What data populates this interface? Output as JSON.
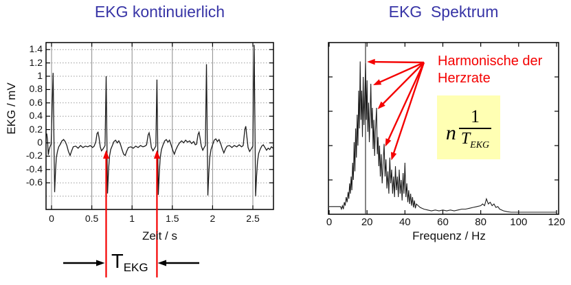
{
  "page": {
    "background": "#ffffff"
  },
  "colors": {
    "title_blue": "#3734a6",
    "annotation_red": "#f40000",
    "formula_bg": "#ffffb3",
    "trace": "#1a1a1a",
    "grid_h": "#999999",
    "grid_v": "#8a8a8a",
    "axis": "#000000"
  },
  "chart_data": [
    {
      "id": "ekg-time",
      "type": "line",
      "title": "EKG kontinuierlich",
      "xlabel": "Zeit / s",
      "ylabel": "EKG / mV",
      "xlim": [
        -0.07,
        2.76
      ],
      "ylim": [
        -1.0,
        1.5
      ],
      "grid": true,
      "x_ticks": [
        "0",
        "0.5",
        "1",
        "1.5",
        "2",
        "2.5"
      ],
      "y_ticks": [
        "1.4",
        "1.2",
        "1",
        "0.8",
        "0.6",
        "0.4",
        "0.2",
        "0",
        "-0.2",
        "-0.4",
        "-0.6"
      ],
      "x_gridlines": [
        0,
        0.5,
        1,
        1.5,
        2,
        2.5
      ],
      "y_gridlines": [
        1.4,
        1.2,
        1,
        0.8,
        0.6,
        0.4,
        0.2,
        0,
        -0.2,
        -0.4,
        -0.6,
        -0.8
      ],
      "annotations": {
        "period_lines_t": [
          0.678,
          1.309
        ],
        "line_color": "#f40000",
        "label_main": "T",
        "label_sub": "EKG"
      },
      "points": [
        [
          -0.06,
          0.14
        ],
        [
          -0.05,
          0.05
        ],
        [
          -0.04,
          -0.18
        ],
        [
          -0.03,
          -0.1
        ],
        [
          -0.02,
          -0.06
        ],
        [
          -0.005,
          -0.02
        ],
        [
          0.02,
          1.05
        ],
        [
          0.038,
          -0.74
        ],
        [
          0.05,
          -0.4
        ],
        [
          0.06,
          -0.22
        ],
        [
          0.075,
          -0.12
        ],
        [
          0.09,
          -0.06
        ],
        [
          0.11,
          -0.02
        ],
        [
          0.13,
          0.03
        ],
        [
          0.15,
          0.05
        ],
        [
          0.17,
          0.02
        ],
        [
          0.19,
          -0.04
        ],
        [
          0.21,
          -0.13
        ],
        [
          0.23,
          -0.19
        ],
        [
          0.25,
          -0.12
        ],
        [
          0.27,
          -0.06
        ],
        [
          0.3,
          -0.05
        ],
        [
          0.33,
          -0.08
        ],
        [
          0.36,
          -0.04
        ],
        [
          0.39,
          -0.07
        ],
        [
          0.42,
          -0.05
        ],
        [
          0.45,
          -0.06
        ],
        [
          0.48,
          -0.04
        ],
        [
          0.51,
          -0.07
        ],
        [
          0.53,
          -0.05
        ],
        [
          0.55,
          0.02
        ],
        [
          0.565,
          0.14
        ],
        [
          0.578,
          0.16
        ],
        [
          0.59,
          0.08
        ],
        [
          0.605,
          -0.06
        ],
        [
          0.62,
          -0.12
        ],
        [
          0.64,
          -0.09
        ],
        [
          0.655,
          -0.06
        ],
        [
          0.665,
          -0.04
        ],
        [
          0.678,
          1.0
        ],
        [
          0.695,
          -0.76
        ],
        [
          0.707,
          -0.42
        ],
        [
          0.72,
          -0.2
        ],
        [
          0.735,
          -0.1
        ],
        [
          0.755,
          -0.04
        ],
        [
          0.775,
          0.02
        ],
        [
          0.795,
          0.04
        ],
        [
          0.815,
          0.0
        ],
        [
          0.835,
          0.03
        ],
        [
          0.855,
          -0.02
        ],
        [
          0.875,
          -0.1
        ],
        [
          0.895,
          -0.17
        ],
        [
          0.915,
          -0.19
        ],
        [
          0.935,
          -0.12
        ],
        [
          0.955,
          -0.07
        ],
        [
          0.985,
          -0.06
        ],
        [
          1.015,
          -0.08
        ],
        [
          1.045,
          -0.05
        ],
        [
          1.075,
          -0.07
        ],
        [
          1.105,
          -0.04
        ],
        [
          1.135,
          -0.06
        ],
        [
          1.16,
          -0.05
        ],
        [
          1.18,
          -0.03
        ],
        [
          1.2,
          0.12
        ],
        [
          1.212,
          0.15
        ],
        [
          1.225,
          0.06
        ],
        [
          1.24,
          -0.07
        ],
        [
          1.26,
          -0.12
        ],
        [
          1.28,
          -0.08
        ],
        [
          1.295,
          -0.05
        ],
        [
          1.309,
          0.95
        ],
        [
          1.326,
          -0.78
        ],
        [
          1.338,
          -0.45
        ],
        [
          1.35,
          -0.22
        ],
        [
          1.365,
          -0.1
        ],
        [
          1.385,
          -0.03
        ],
        [
          1.405,
          0.03
        ],
        [
          1.425,
          0.05
        ],
        [
          1.445,
          0.01
        ],
        [
          1.465,
          0.04
        ],
        [
          1.485,
          -0.03
        ],
        [
          1.505,
          -0.11
        ],
        [
          1.525,
          -0.17
        ],
        [
          1.545,
          -0.1
        ],
        [
          1.565,
          -0.05
        ],
        [
          1.59,
          0.0
        ],
        [
          1.615,
          0.03
        ],
        [
          1.64,
          0.0
        ],
        [
          1.665,
          0.04
        ],
        [
          1.69,
          0.01
        ],
        [
          1.715,
          0.03
        ],
        [
          1.74,
          -0.01
        ],
        [
          1.765,
          0.02
        ],
        [
          1.785,
          -0.03
        ],
        [
          1.8,
          -0.02
        ],
        [
          1.82,
          0.13
        ],
        [
          1.832,
          0.16
        ],
        [
          1.845,
          0.07
        ],
        [
          1.86,
          -0.05
        ],
        [
          1.878,
          -0.11
        ],
        [
          1.895,
          -0.07
        ],
        [
          1.91,
          -0.04
        ],
        [
          1.924,
          1.18
        ],
        [
          1.941,
          -0.79
        ],
        [
          1.953,
          -0.45
        ],
        [
          1.965,
          -0.22
        ],
        [
          1.98,
          -0.1
        ],
        [
          2.0,
          -0.03
        ],
        [
          2.02,
          0.04
        ],
        [
          2.04,
          0.06
        ],
        [
          2.06,
          0.02
        ],
        [
          2.08,
          0.05
        ],
        [
          2.1,
          -0.01
        ],
        [
          2.12,
          -0.09
        ],
        [
          2.14,
          -0.15
        ],
        [
          2.16,
          -0.09
        ],
        [
          2.18,
          -0.05
        ],
        [
          2.21,
          -0.04
        ],
        [
          2.24,
          -0.07
        ],
        [
          2.27,
          -0.04
        ],
        [
          2.3,
          -0.06
        ],
        [
          2.33,
          -0.03
        ],
        [
          2.36,
          -0.06
        ],
        [
          2.38,
          -0.04
        ],
        [
          2.4,
          0.2
        ],
        [
          2.412,
          0.25
        ],
        [
          2.425,
          0.1
        ],
        [
          2.44,
          -0.07
        ],
        [
          2.46,
          -0.13
        ],
        [
          2.48,
          -0.09
        ],
        [
          2.5,
          -0.05
        ],
        [
          2.516,
          1.47
        ],
        [
          2.534,
          -0.8
        ],
        [
          2.546,
          -0.5
        ],
        [
          2.558,
          -0.28
        ],
        [
          2.572,
          -0.16
        ],
        [
          2.59,
          -0.1
        ],
        [
          2.61,
          -0.05
        ],
        [
          2.63,
          -0.03
        ],
        [
          2.65,
          -0.07
        ],
        [
          2.67,
          -0.11
        ],
        [
          2.69,
          -0.08
        ],
        [
          2.71,
          -0.1
        ],
        [
          2.73,
          -0.06
        ],
        [
          2.75,
          -0.08
        ]
      ]
    },
    {
      "id": "ekg-spectrum",
      "type": "line",
      "title": "EKG  Spektrum",
      "xlabel": "Frequenz / Hz",
      "xlim": [
        0,
        121
      ],
      "ylim": [
        0,
        1
      ],
      "grid": false,
      "x_ticks": [
        "0",
        "20",
        "40",
        "60",
        "80",
        "100",
        "120"
      ],
      "marker_line_hz": 19.2,
      "annotations": {
        "color": "#f40000",
        "text_line1": "Harmonische der",
        "text_line2": "Herzrate",
        "formula": {
          "factor": "n",
          "numerator": "1",
          "den_main": "T",
          "den_sub": "EKG"
        },
        "arrows": {
          "origin": {
            "hz": 50.0,
            "v": 0.884
          },
          "targets": [
            {
              "hz": 20.0,
              "v": 0.888
            },
            {
              "hz": 23.2,
              "v": 0.752
            },
            {
              "hz": 25.6,
              "v": 0.612
            },
            {
              "hz": 29.6,
              "v": 0.394
            },
            {
              "hz": 32.8,
              "v": 0.314
            }
          ]
        }
      },
      "points": [
        [
          0,
          0.045
        ],
        [
          2,
          0.045
        ],
        [
          4,
          0.045
        ],
        [
          6,
          0.045
        ],
        [
          6.5,
          0.03
        ],
        [
          7,
          0.05
        ],
        [
          7.5,
          0.03
        ],
        [
          8,
          0.07
        ],
        [
          8.5,
          0.05
        ],
        [
          9,
          0.1
        ],
        [
          9.5,
          0.07
        ],
        [
          10,
          0.13
        ],
        [
          10.4,
          0.09
        ],
        [
          10.8,
          0.18
        ],
        [
          11.2,
          0.12
        ],
        [
          11.6,
          0.22
        ],
        [
          12,
          0.14
        ],
        [
          12.4,
          0.3
        ],
        [
          12.8,
          0.2
        ],
        [
          13.2,
          0.42
        ],
        [
          13.6,
          0.25
        ],
        [
          14,
          0.5
        ],
        [
          14.4,
          0.33
        ],
        [
          14.8,
          0.58
        ],
        [
          15.2,
          0.4
        ],
        [
          15.6,
          0.72
        ],
        [
          16,
          0.5
        ],
        [
          16.4,
          0.89
        ],
        [
          16.8,
          0.55
        ],
        [
          17.2,
          0.72
        ],
        [
          17.6,
          0.45
        ],
        [
          18,
          0.8
        ],
        [
          18.4,
          0.52
        ],
        [
          18.8,
          0.7
        ],
        [
          19.2,
          0.88
        ],
        [
          19.6,
          0.55
        ],
        [
          20,
          0.78
        ],
        [
          20.4,
          0.48
        ],
        [
          20.8,
          0.65
        ],
        [
          21.2,
          0.42
        ],
        [
          21.6,
          0.58
        ],
        [
          22,
          0.76
        ],
        [
          22.4,
          0.5
        ],
        [
          22.8,
          0.62
        ],
        [
          23.2,
          0.38
        ],
        [
          23.6,
          0.55
        ],
        [
          24,
          0.34
        ],
        [
          24.4,
          0.48
        ],
        [
          25,
          0.62
        ],
        [
          25.4,
          0.35
        ],
        [
          25.8,
          0.45
        ],
        [
          26.2,
          0.28
        ],
        [
          26.6,
          0.4
        ],
        [
          27,
          0.22
        ],
        [
          27.5,
          0.35
        ],
        [
          28,
          0.18
        ],
        [
          28.5,
          0.3
        ],
        [
          29,
          0.41
        ],
        [
          29.5,
          0.22
        ],
        [
          30,
          0.32
        ],
        [
          30.5,
          0.15
        ],
        [
          31,
          0.25
        ],
        [
          31.5,
          0.12
        ],
        [
          32,
          0.33
        ],
        [
          32.5,
          0.18
        ],
        [
          33,
          0.26
        ],
        [
          33.5,
          0.12
        ],
        [
          34,
          0.22
        ],
        [
          34.5,
          0.1
        ],
        [
          35,
          0.28
        ],
        [
          35.5,
          0.14
        ],
        [
          36,
          0.22
        ],
        [
          36.5,
          0.1
        ],
        [
          37,
          0.26
        ],
        [
          37.5,
          0.12
        ],
        [
          38,
          0.2
        ],
        [
          38.5,
          0.08
        ],
        [
          39,
          0.24
        ],
        [
          39.5,
          0.12
        ],
        [
          40,
          0.3
        ],
        [
          40.5,
          0.1
        ],
        [
          41,
          0.18
        ],
        [
          41.5,
          0.07
        ],
        [
          42,
          0.14
        ],
        [
          42.5,
          0.06
        ],
        [
          43,
          0.12
        ],
        [
          43.5,
          0.05
        ],
        [
          44,
          0.1
        ],
        [
          44.5,
          0.04
        ],
        [
          45,
          0.08
        ],
        [
          45.5,
          0.035
        ],
        [
          46,
          0.06
        ],
        [
          47,
          0.05
        ],
        [
          48,
          0.04
        ],
        [
          49,
          0.035
        ],
        [
          50,
          0.03
        ],
        [
          52,
          0.025
        ],
        [
          54,
          0.02
        ],
        [
          56,
          0.025
        ],
        [
          58,
          0.02
        ],
        [
          60,
          0.025
        ],
        [
          62,
          0.02
        ],
        [
          64,
          0.025
        ],
        [
          66,
          0.02
        ],
        [
          68,
          0.025
        ],
        [
          70,
          0.03
        ],
        [
          72,
          0.03
        ],
        [
          74,
          0.035
        ],
        [
          76,
          0.04
        ],
        [
          78,
          0.045
        ],
        [
          80,
          0.05
        ],
        [
          81,
          0.06
        ],
        [
          82,
          0.05
        ],
        [
          83,
          0.09
        ],
        [
          84,
          0.06
        ],
        [
          85,
          0.07
        ],
        [
          86,
          0.05
        ],
        [
          87,
          0.06
        ],
        [
          88,
          0.04
        ],
        [
          89,
          0.045
        ],
        [
          90,
          0.03
        ],
        [
          91,
          0.025
        ],
        [
          92,
          0.02
        ],
        [
          94,
          0.015
        ],
        [
          96,
          0.012
        ],
        [
          100,
          0.012
        ],
        [
          105,
          0.012
        ],
        [
          110,
          0.012
        ],
        [
          115,
          0.012
        ],
        [
          120,
          0.012
        ]
      ]
    }
  ]
}
